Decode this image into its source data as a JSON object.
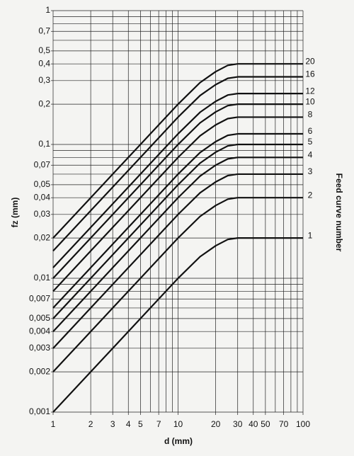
{
  "chart_data": {
    "type": "line",
    "xlabel": "d (mm)",
    "ylabel": "fz (mm)",
    "y2label": "Feed curve number",
    "log_x": true,
    "log_y": true,
    "grid": true,
    "xlim": [
      1,
      100
    ],
    "ylim": [
      0.001,
      1
    ],
    "xticks": [
      1,
      2,
      3,
      4,
      5,
      7,
      10,
      20,
      30,
      40,
      50,
      70,
      100
    ],
    "yticks": [
      1,
      {
        "value": 0.7,
        "label": "0,7"
      },
      {
        "value": 0.5,
        "label": "0,5"
      },
      {
        "value": 0.4,
        "label": "0,4"
      },
      {
        "value": 0.3,
        "label": "0,3"
      },
      {
        "value": 0.2,
        "label": "0,2"
      },
      {
        "value": 0.1,
        "label": "0,1"
      },
      {
        "value": 0.07,
        "label": "0,07"
      },
      {
        "value": 0.05,
        "label": "0,05"
      },
      {
        "value": 0.04,
        "label": "0,04"
      },
      {
        "value": 0.03,
        "label": "0,03"
      },
      {
        "value": 0.02,
        "label": "0,02"
      },
      {
        "value": 0.01,
        "label": "0,01"
      },
      {
        "value": 0.007,
        "label": "0,007"
      },
      {
        "value": 0.005,
        "label": "0,005"
      },
      {
        "value": 0.004,
        "label": "0,004"
      },
      {
        "value": 0.003,
        "label": "0,003"
      },
      {
        "value": 0.002,
        "label": "0,002"
      },
      {
        "value": 0.001,
        "label": "0,001"
      }
    ],
    "xgrid": [
      1,
      2,
      3,
      4,
      5,
      6,
      7,
      8,
      9,
      10,
      20,
      30,
      40,
      50,
      60,
      70,
      80,
      90,
      100
    ],
    "ygrid": [
      0.001,
      0.002,
      0.003,
      0.004,
      0.005,
      0.006,
      0.007,
      0.008,
      0.009,
      0.01,
      0.02,
      0.03,
      0.04,
      0.05,
      0.06,
      0.07,
      0.08,
      0.09,
      0.1,
      0.2,
      0.3,
      0.4,
      0.5,
      0.6,
      0.7,
      0.8,
      0.9,
      1
    ],
    "color": "#111111",
    "x": [
      1,
      2,
      3,
      5,
      7,
      10,
      15,
      20,
      25,
      30,
      50,
      100
    ],
    "series": [
      {
        "name": "1",
        "values": [
          0.001,
          0.002,
          0.003,
          0.005,
          0.007,
          0.01,
          0.0145,
          0.0175,
          0.0195,
          0.02,
          0.02,
          0.02
        ]
      },
      {
        "name": "2",
        "values": [
          0.002,
          0.004,
          0.006,
          0.01,
          0.014,
          0.02,
          0.029,
          0.035,
          0.039,
          0.04,
          0.04,
          0.04
        ]
      },
      {
        "name": "3",
        "values": [
          0.003,
          0.006,
          0.009,
          0.015,
          0.021,
          0.03,
          0.0435,
          0.0525,
          0.0585,
          0.06,
          0.06,
          0.06
        ]
      },
      {
        "name": "4",
        "values": [
          0.004,
          0.008,
          0.012,
          0.02,
          0.028,
          0.04,
          0.058,
          0.07,
          0.078,
          0.08,
          0.08,
          0.08
        ]
      },
      {
        "name": "5",
        "values": [
          0.005,
          0.01,
          0.015,
          0.025,
          0.035,
          0.05,
          0.0725,
          0.0875,
          0.0975,
          0.1,
          0.1,
          0.1
        ]
      },
      {
        "name": "6",
        "values": [
          0.006,
          0.012,
          0.018,
          0.03,
          0.042,
          0.06,
          0.087,
          0.105,
          0.117,
          0.12,
          0.12,
          0.12
        ]
      },
      {
        "name": "8",
        "values": [
          0.008,
          0.016,
          0.024,
          0.04,
          0.056,
          0.08,
          0.116,
          0.14,
          0.156,
          0.16,
          0.16,
          0.16
        ]
      },
      {
        "name": "10",
        "values": [
          0.01,
          0.02,
          0.03,
          0.05,
          0.07,
          0.1,
          0.145,
          0.175,
          0.195,
          0.2,
          0.2,
          0.2
        ]
      },
      {
        "name": "12",
        "values": [
          0.012,
          0.024,
          0.036,
          0.06,
          0.084,
          0.12,
          0.174,
          0.21,
          0.234,
          0.24,
          0.24,
          0.24
        ]
      },
      {
        "name": "16",
        "values": [
          0.016,
          0.032,
          0.048,
          0.08,
          0.112,
          0.16,
          0.232,
          0.28,
          0.312,
          0.32,
          0.32,
          0.32
        ]
      },
      {
        "name": "20",
        "values": [
          0.02,
          0.04,
          0.06,
          0.1,
          0.14,
          0.2,
          0.29,
          0.35,
          0.39,
          0.4,
          0.4,
          0.4
        ]
      }
    ]
  }
}
